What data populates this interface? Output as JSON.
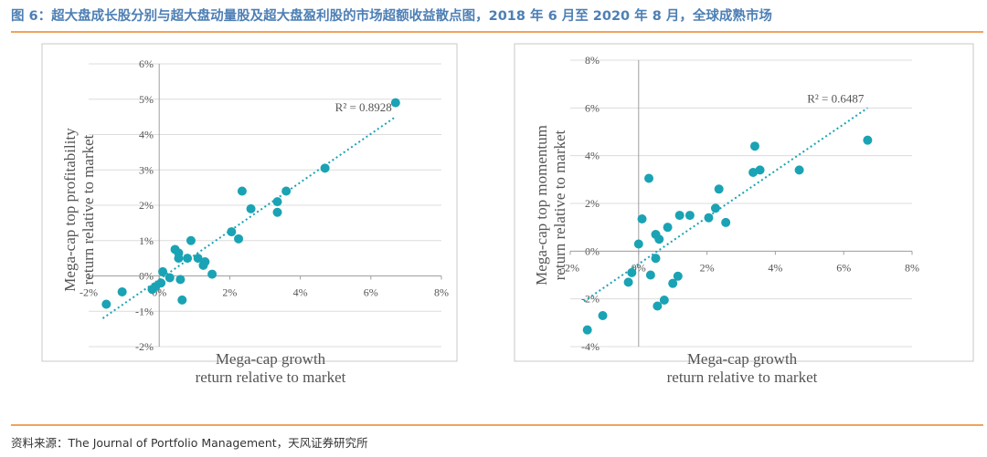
{
  "figure": {
    "title": "图 6：超大盘成长股分别与超大盘动量股及超大盘盈利股的市场超额收益散点图，2018 年 6 月至 2020 年 8 月，全球成熟市场",
    "source": "资料来源：The Journal of Portfolio Management，天风证券研究所"
  },
  "colors": {
    "accent": "#1aa3b4",
    "title": "#4d7fb5",
    "rule": "#f0a35e",
    "grid": "#dcdcdc",
    "axis": "#a0a0a0"
  },
  "chart_data": [
    {
      "type": "scatter",
      "name": "profitability",
      "xlabel": [
        "Mega-cap growth",
        "return relative to market"
      ],
      "ylabel": [
        "Mega-cap top profitability",
        "return relative to market"
      ],
      "xlim": [
        -2,
        8
      ],
      "ylim": [
        -2,
        6
      ],
      "xticks": [
        -2,
        0,
        2,
        4,
        6,
        8
      ],
      "yticks": [
        -2,
        -1,
        0,
        1,
        2,
        3,
        4,
        5,
        6
      ],
      "xtick_labels": [
        "-2%",
        "0%",
        "2%",
        "4%",
        "6%",
        "8%"
      ],
      "ytick_labels": [
        "-2%",
        "-1%",
        "0%",
        "1%",
        "2%",
        "3%",
        "4%",
        "5%",
        "6%"
      ],
      "r2_label": "R² = 0.8928",
      "trendline": {
        "x": [
          -1.6,
          6.7
        ],
        "y": [
          -1.2,
          4.5
        ]
      },
      "points": [
        {
          "x": -1.5,
          "y": -0.8
        },
        {
          "x": -1.05,
          "y": -0.45
        },
        {
          "x": -0.2,
          "y": -0.38
        },
        {
          "x": -0.1,
          "y": -0.3
        },
        {
          "x": 0.05,
          "y": -0.2
        },
        {
          "x": 0.1,
          "y": 0.12
        },
        {
          "x": 0.3,
          "y": -0.05
        },
        {
          "x": 0.45,
          "y": 0.75
        },
        {
          "x": 0.55,
          "y": 0.65
        },
        {
          "x": 0.55,
          "y": 0.5
        },
        {
          "x": 0.6,
          "y": -0.1
        },
        {
          "x": 0.65,
          "y": -0.68
        },
        {
          "x": 0.8,
          "y": 0.5
        },
        {
          "x": 0.9,
          "y": 1.0
        },
        {
          "x": 1.1,
          "y": 0.5
        },
        {
          "x": 1.25,
          "y": 0.3
        },
        {
          "x": 1.3,
          "y": 0.4
        },
        {
          "x": 1.5,
          "y": 0.05
        },
        {
          "x": 2.05,
          "y": 1.25
        },
        {
          "x": 2.25,
          "y": 1.05
        },
        {
          "x": 2.35,
          "y": 2.4
        },
        {
          "x": 2.6,
          "y": 1.9
        },
        {
          "x": 3.35,
          "y": 2.1
        },
        {
          "x": 3.35,
          "y": 1.8
        },
        {
          "x": 3.6,
          "y": 2.4
        },
        {
          "x": 4.7,
          "y": 3.05
        },
        {
          "x": 6.7,
          "y": 4.9
        }
      ]
    },
    {
      "type": "scatter",
      "name": "momentum",
      "xlabel": [
        "Mega-cap growth",
        "return relative to market"
      ],
      "ylabel": [
        "Mega-cap top momentum",
        "return relative to market"
      ],
      "xlim": [
        -2,
        8
      ],
      "ylim": [
        -4,
        8
      ],
      "xticks": [
        -2,
        0,
        2,
        4,
        6,
        8
      ],
      "yticks": [
        -4,
        -2,
        0,
        2,
        4,
        6,
        8
      ],
      "xtick_labels": [
        "-2%",
        "0%",
        "2%",
        "4%",
        "6%",
        "8%"
      ],
      "ytick_labels": [
        "-4%",
        "-2%",
        "0%",
        "2%",
        "4%",
        "6%",
        "8%"
      ],
      "r2_label": "R² = 0.6487",
      "trendline": {
        "x": [
          -1.6,
          6.7
        ],
        "y": [
          -2.1,
          6.0
        ]
      },
      "points": [
        {
          "x": -1.5,
          "y": -3.3
        },
        {
          "x": -1.05,
          "y": -2.7
        },
        {
          "x": -0.3,
          "y": -1.3
        },
        {
          "x": -0.2,
          "y": -0.9
        },
        {
          "x": 0.0,
          "y": 0.3
        },
        {
          "x": 0.1,
          "y": 1.35
        },
        {
          "x": 0.3,
          "y": 3.05
        },
        {
          "x": 0.35,
          "y": -1.0
        },
        {
          "x": 0.5,
          "y": 0.7
        },
        {
          "x": 0.5,
          "y": -0.3
        },
        {
          "x": 0.55,
          "y": -2.3
        },
        {
          "x": 0.6,
          "y": 0.5
        },
        {
          "x": 0.75,
          "y": -2.05
        },
        {
          "x": 0.85,
          "y": 1.0
        },
        {
          "x": 1.0,
          "y": -1.35
        },
        {
          "x": 1.15,
          "y": -1.05
        },
        {
          "x": 1.2,
          "y": 1.5
        },
        {
          "x": 1.5,
          "y": 1.5
        },
        {
          "x": 2.05,
          "y": 1.4
        },
        {
          "x": 2.25,
          "y": 1.8
        },
        {
          "x": 2.35,
          "y": 2.6
        },
        {
          "x": 2.55,
          "y": 1.2
        },
        {
          "x": 3.35,
          "y": 3.3
        },
        {
          "x": 3.4,
          "y": 4.4
        },
        {
          "x": 3.55,
          "y": 3.4
        },
        {
          "x": 4.7,
          "y": 3.4
        },
        {
          "x": 6.7,
          "y": 4.65
        }
      ]
    }
  ]
}
